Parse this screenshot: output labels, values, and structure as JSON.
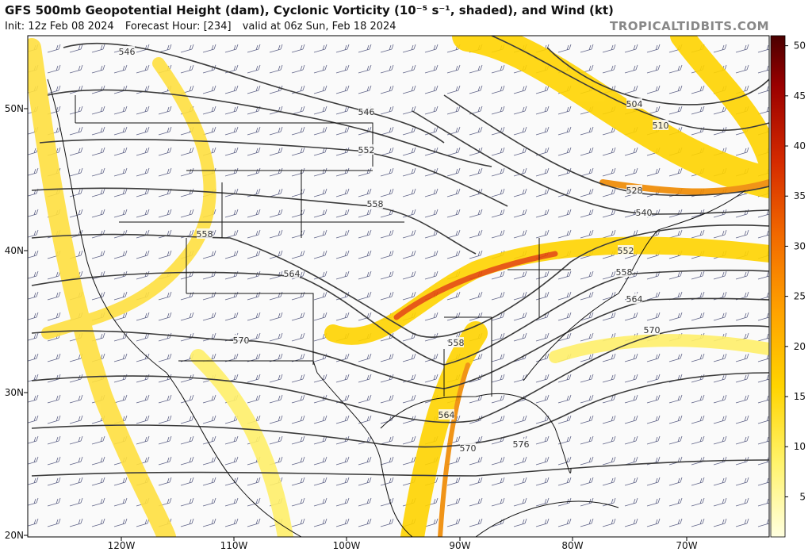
{
  "header": {
    "title": "GFS 500mb Geopotential Height (dam), Cyclonic Vorticity (10⁻⁵ s⁻¹, shaded), and Wind (kt)",
    "init": "Init: 12z Feb 08 2024",
    "forecast_hour": "Forecast Hour: [234]",
    "valid": "valid at 06z Sun, Feb 18 2024",
    "site": "TROPICALTIDBITS.COM"
  },
  "map": {
    "lat_labels": [
      "50N",
      "40N",
      "30N",
      "20N"
    ],
    "lon_labels": [
      "120W",
      "110W",
      "100W",
      "90W",
      "80W",
      "70W"
    ],
    "contour_labels": [
      546,
      546,
      552,
      558,
      558,
      564,
      570,
      558,
      564,
      570,
      576,
      504,
      510,
      528,
      540,
      552,
      558,
      564,
      570
    ]
  },
  "colorbar": {
    "lim": [
      1,
      51
    ],
    "ticks": [
      5,
      10,
      15,
      20,
      25,
      30,
      35,
      40,
      45,
      50
    ]
  }
}
